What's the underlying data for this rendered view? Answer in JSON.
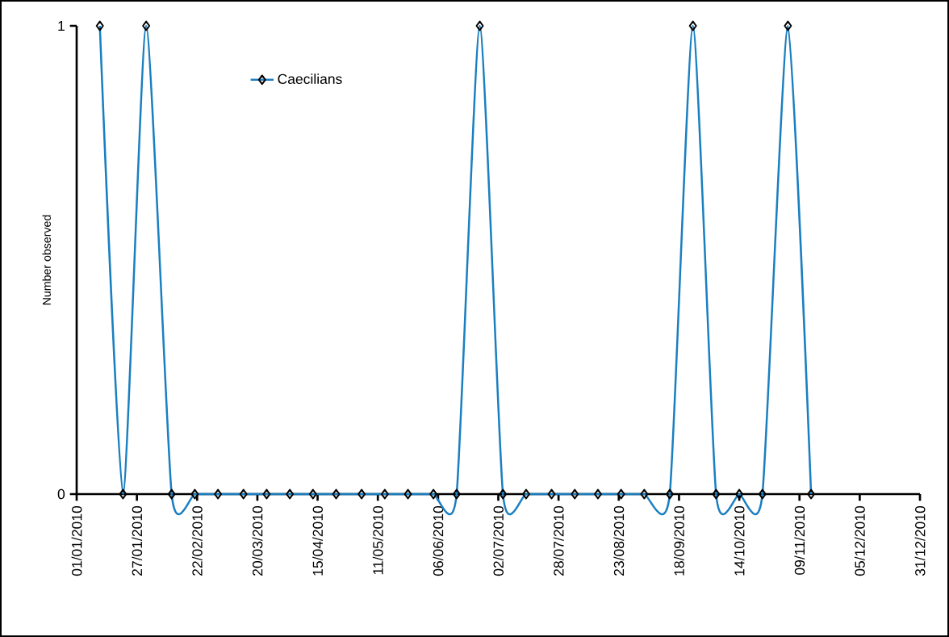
{
  "chart_data": {
    "type": "line",
    "ylabel": "Number observed",
    "x": [
      "2010-01-11",
      "2010-01-21",
      "2010-01-31",
      "2010-02-11",
      "2010-02-21",
      "2010-03-03",
      "2010-03-14",
      "2010-03-24",
      "2010-04-03",
      "2010-04-13",
      "2010-04-23",
      "2010-05-04",
      "2010-05-14",
      "2010-05-24",
      "2010-06-04",
      "2010-06-14",
      "2010-06-24",
      "2010-07-04",
      "2010-07-14",
      "2010-07-25",
      "2010-08-04",
      "2010-08-14",
      "2010-08-24",
      "2010-09-03",
      "2010-09-14",
      "2010-09-24",
      "2010-10-04",
      "2010-10-14",
      "2010-10-24",
      "2010-11-04",
      "2010-11-14"
    ],
    "series": [
      {
        "name": "Caecilians",
        "color": "#1a7fc1",
        "values": [
          1,
          0,
          1,
          0,
          0,
          0,
          0,
          0,
          0,
          0,
          0,
          0,
          0,
          0,
          0,
          0,
          1,
          0,
          0,
          0,
          0,
          0,
          0,
          0,
          0,
          1,
          0,
          0,
          0,
          1,
          0
        ]
      }
    ],
    "xlim": [
      "2010-01-01",
      "2010-12-31"
    ],
    "xticks": [
      {
        "value": "2010-01-01",
        "label": "01/01/2010"
      },
      {
        "value": "2010-01-27",
        "label": "27/01/2010"
      },
      {
        "value": "2010-02-22",
        "label": "22/02/2010"
      },
      {
        "value": "2010-03-20",
        "label": "20/03/2010"
      },
      {
        "value": "2010-04-15",
        "label": "15/04/2010"
      },
      {
        "value": "2010-05-11",
        "label": "11/05/2010"
      },
      {
        "value": "2010-06-06",
        "label": "06/06/2010"
      },
      {
        "value": "2010-07-02",
        "label": "02/07/2010"
      },
      {
        "value": "2010-07-28",
        "label": "28/07/2010"
      },
      {
        "value": "2010-08-23",
        "label": "23/08/2010"
      },
      {
        "value": "2010-09-18",
        "label": "18/09/2010"
      },
      {
        "value": "2010-10-14",
        "label": "14/10/2010"
      },
      {
        "value": "2010-11-09",
        "label": "09/11/2010"
      },
      {
        "value": "2010-12-05",
        "label": "05/12/2010"
      },
      {
        "value": "2010-12-31",
        "label": "31/12/2010"
      }
    ],
    "ylim": [
      0,
      1
    ],
    "yticks": [
      0,
      1
    ],
    "legend": "top left",
    "marker": "diamond",
    "line_style": "solid",
    "grid": false
  }
}
